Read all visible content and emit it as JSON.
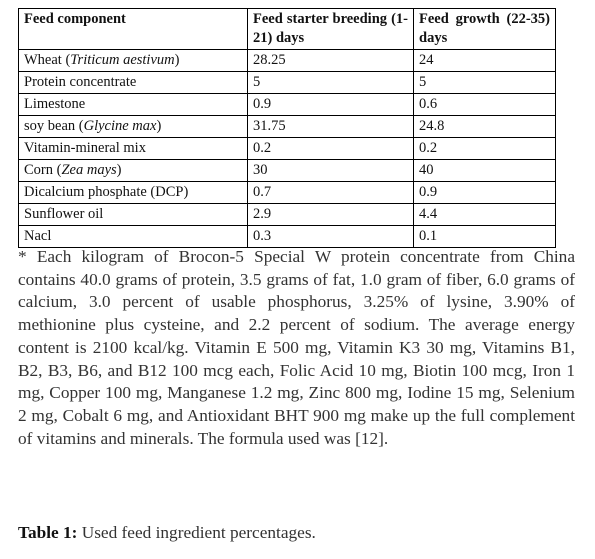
{
  "table": {
    "header": [
      "Feed component",
      "Feed starter breeding (1-21) days",
      "Feed growth (22-35) days"
    ],
    "rows": [
      [
        {
          "parts": [
            "Wheat (",
            "Triticum aestivum",
            ")"
          ]
        },
        28.25,
        24
      ],
      [
        "Protein concentrate",
        5,
        5
      ],
      [
        "Limestone",
        0.9,
        0.6
      ],
      [
        {
          "parts": [
            "soy bean (",
            "Glycine max",
            ")"
          ]
        },
        31.75,
        24.8
      ],
      [
        "Vitamin-mineral mix",
        0.2,
        0.2
      ],
      [
        {
          "parts": [
            "Corn (",
            "Zea mays",
            ")"
          ]
        },
        30,
        40
      ],
      [
        "Dicalcium phosphate  (DCP)",
        0.7,
        0.9
      ],
      [
        "Sunflower oil",
        2.9,
        4.4
      ],
      [
        "Nacl",
        0.3,
        0.1
      ]
    ]
  },
  "footnote": "* Each kilogram of Brocon-5 Special W protein concentrate from China contains 40.0 grams of protein, 3.5 grams of fat, 1.0 gram of fiber, 6.0 grams of calcium, 3.0 percent of usable phosphorus, 3.25% of lysine, 3.90% of methionine plus cysteine, and 2.2 percent of sodium. The average energy content is 2100 kcal/kg. Vitamin E 500 mg, Vitamin K3 30 mg, Vitamins B1, B2, B3, B6, and B12 100 mcg each, Folic Acid 10 mg, Biotin 100 mcg, Iron 1 mg, Copper 100 mg, Manganese 1.2 mg, Zinc 800 mg, Iodine 15 mg, Selenium 2 mg, Cobalt 6 mg, and Antioxidant BHT 900 mg make up the full complement of vitamins and minerals. The formula used was [12].",
  "caption": {
    "label": "Table 1:",
    "text": "Used feed ingredient percentages."
  }
}
